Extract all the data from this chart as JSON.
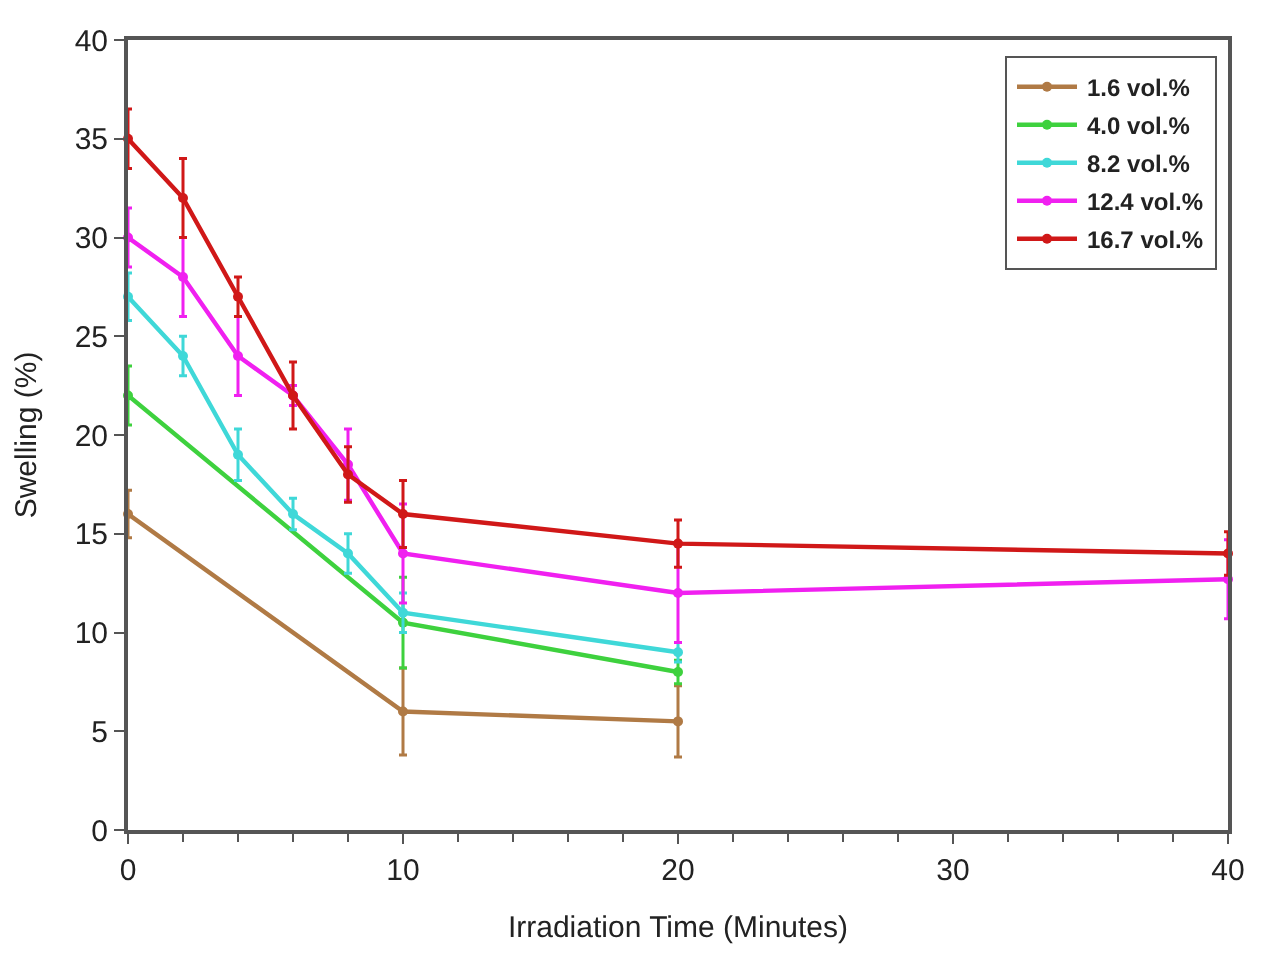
{
  "chart_data": {
    "type": "line",
    "xlabel": "Irradiation Time (Minutes)",
    "ylabel": "Swelling (%)",
    "xlim": [
      0,
      40
    ],
    "xticks": [
      0,
      10,
      20,
      30,
      40
    ],
    "ylim": [
      0,
      40
    ],
    "yticks": [
      0,
      5,
      10,
      15,
      20,
      25,
      30,
      35,
      40
    ],
    "legend": "top right",
    "marker": "circle",
    "line_style": "solid",
    "series": [
      {
        "name": "1.6 vol.%",
        "color": "#b07a45",
        "x": [
          0,
          10,
          20
        ],
        "values": [
          16,
          6,
          5.5
        ],
        "errors": [
          1.2,
          2.2,
          1.8
        ]
      },
      {
        "name": "4.0 vol.%",
        "color": "#3ed13e",
        "x": [
          0,
          10,
          20
        ],
        "values": [
          22,
          10.5,
          8
        ],
        "errors": [
          1.5,
          2.3,
          0.6
        ]
      },
      {
        "name": "8.2 vol.%",
        "color": "#3fd8d8",
        "x": [
          0,
          2,
          4,
          6,
          8,
          10,
          20
        ],
        "values": [
          27,
          24,
          19,
          16,
          14,
          11,
          9
        ],
        "errors": [
          1.2,
          1,
          1.3,
          0.8,
          1,
          1,
          0.5
        ]
      },
      {
        "name": "12.4 vol.%",
        "color": "#f020f0",
        "x": [
          0,
          2,
          4,
          6,
          8,
          10,
          20,
          40
        ],
        "values": [
          30,
          28,
          24,
          22,
          18.5,
          14,
          12,
          12.7
        ],
        "errors": [
          1.5,
          2,
          2,
          0.5,
          1.8,
          2.5,
          2.5,
          2
        ]
      },
      {
        "name": "16.7 vol.%",
        "color": "#d01818",
        "x": [
          0,
          2,
          4,
          6,
          8,
          10,
          20,
          40
        ],
        "values": [
          35,
          32,
          27,
          22,
          18,
          16,
          14.5,
          14
        ],
        "errors": [
          1.5,
          2,
          1,
          1.7,
          1.4,
          1.7,
          1.2,
          1.1
        ]
      }
    ]
  }
}
